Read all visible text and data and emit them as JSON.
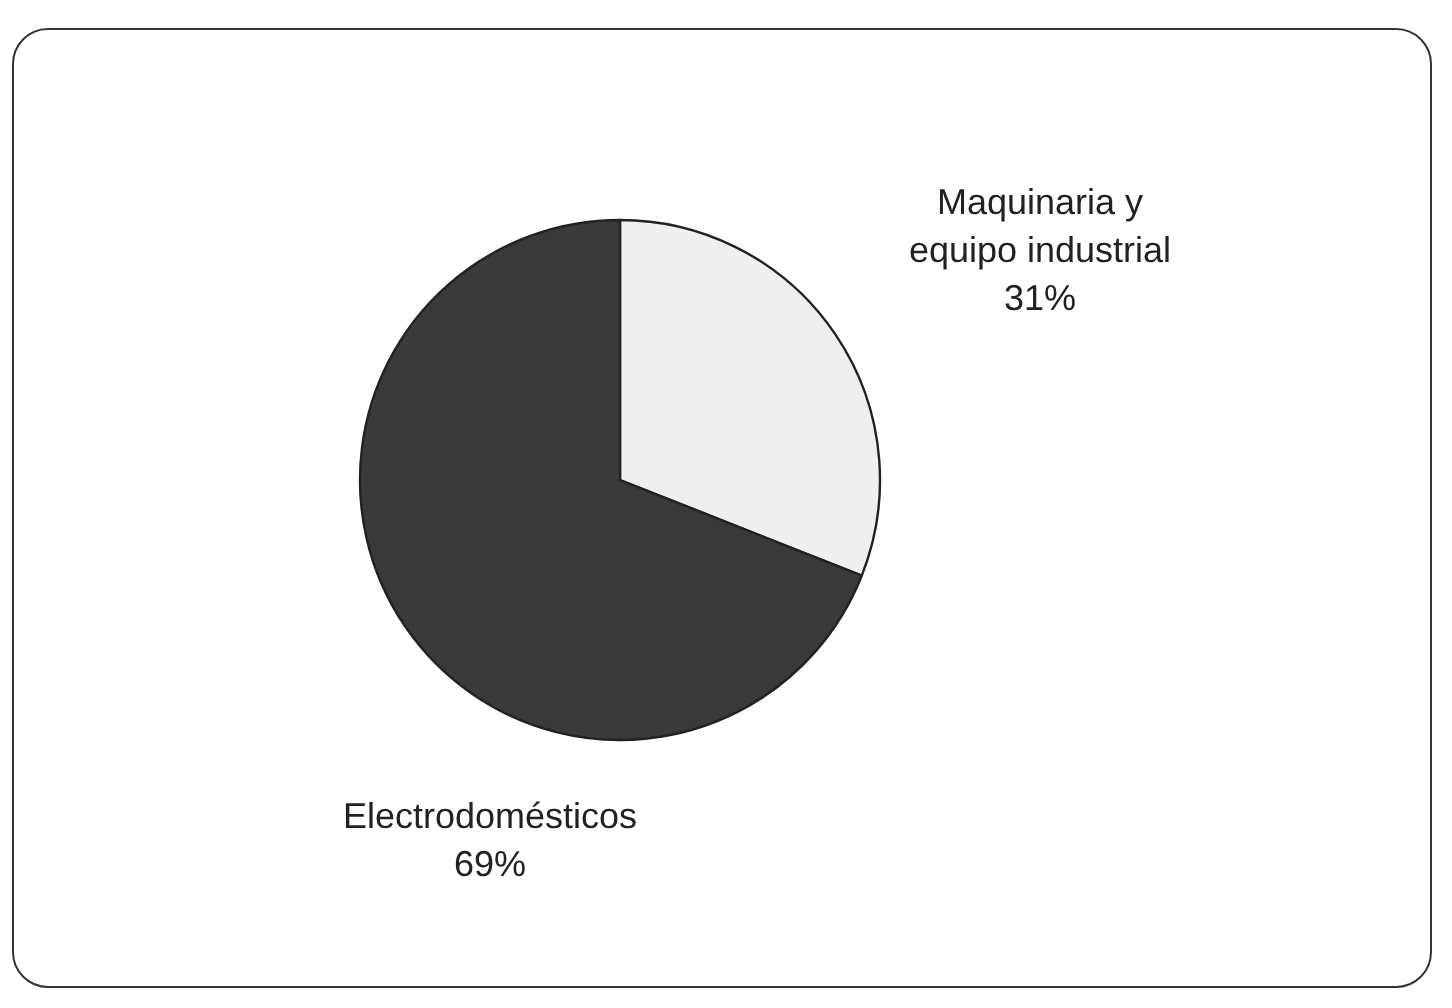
{
  "chart_data": {
    "type": "pie",
    "categories": [
      "Maquinaria y\nequipo industrial",
      "Electrodomésticos"
    ],
    "values": [
      31,
      69
    ],
    "value_labels": [
      "31%",
      "69%"
    ],
    "colors": [
      "#efefef",
      "#3a3a3a"
    ],
    "legend": false
  }
}
